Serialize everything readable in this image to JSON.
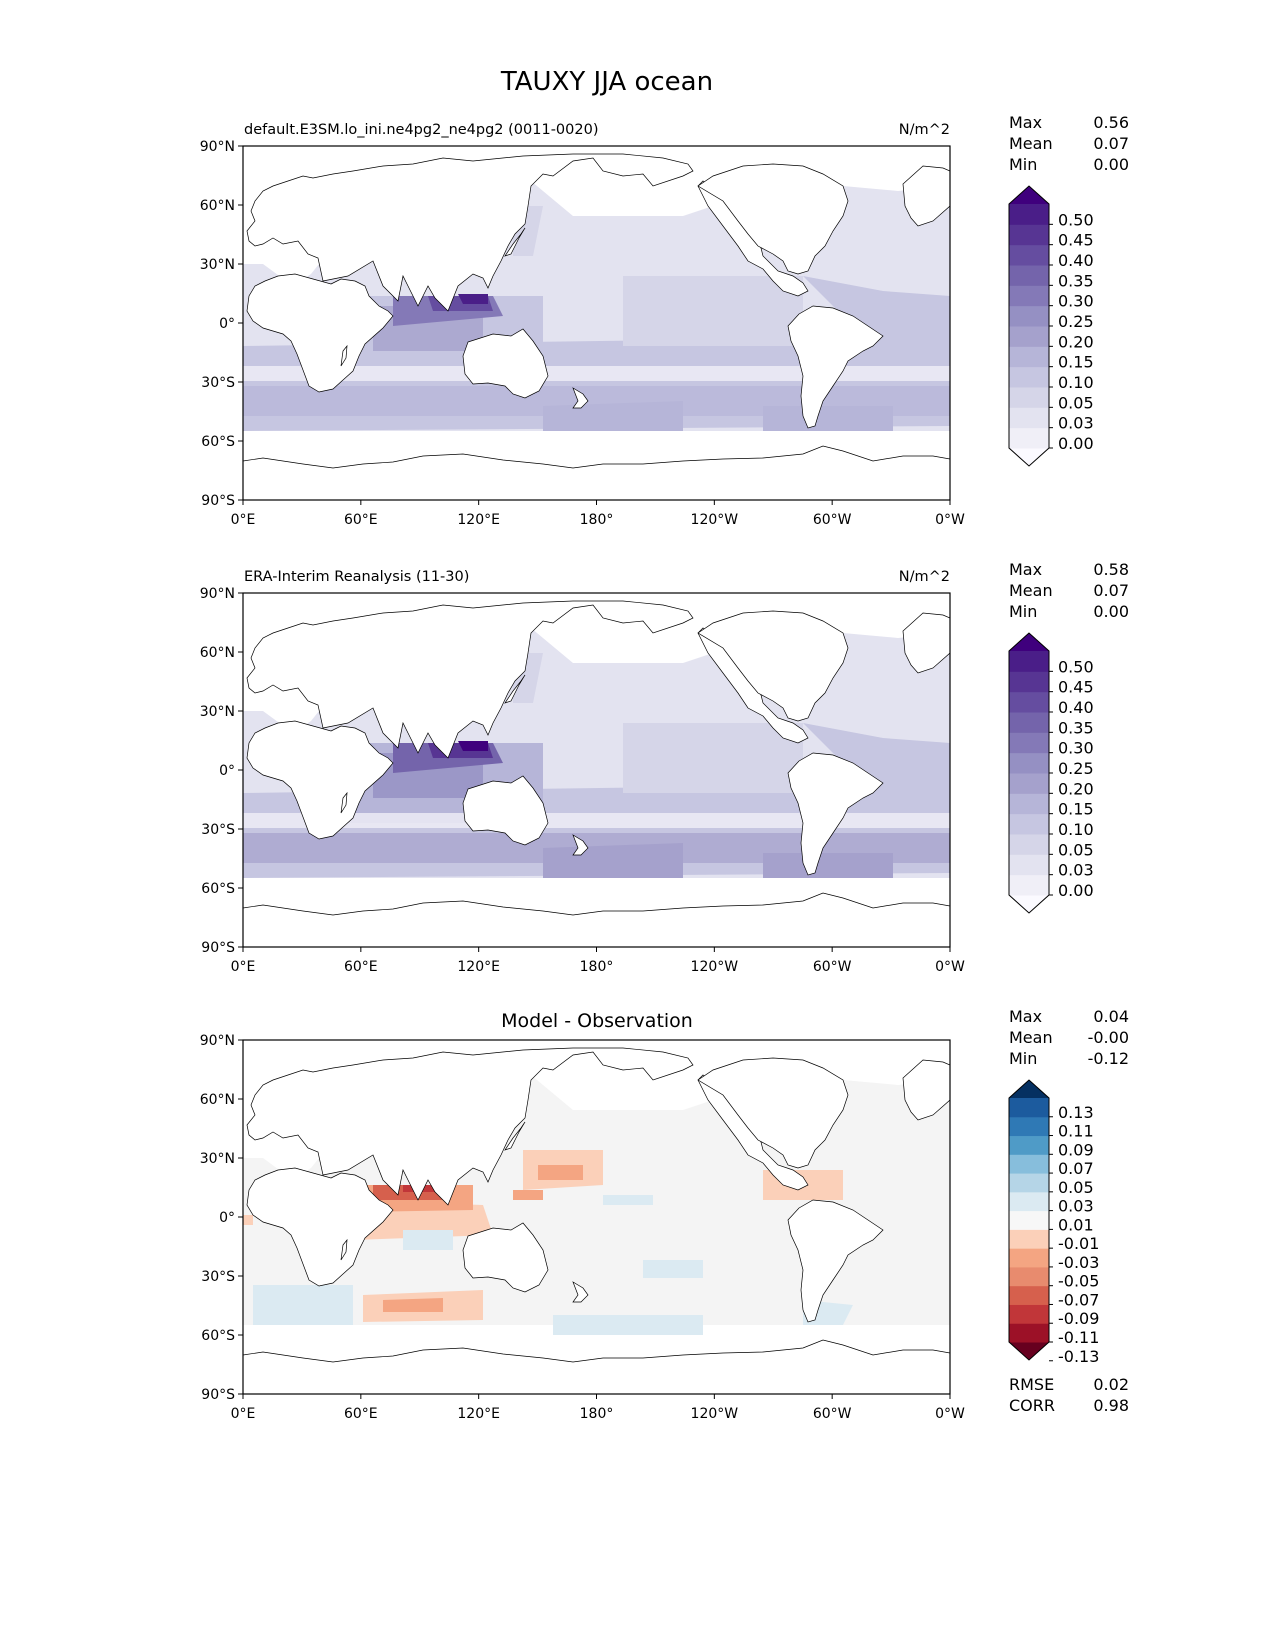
{
  "figure": {
    "title": "TAUXY JJA ocean"
  },
  "axes": {
    "lat_ticks": [
      "90°N",
      "60°N",
      "30°N",
      "0°",
      "30°S",
      "60°S",
      "90°S"
    ],
    "lon_ticks": [
      "0°E",
      "60°E",
      "120°E",
      "180°",
      "120°W",
      "60°W",
      "0°W"
    ]
  },
  "panels": [
    {
      "id": "model",
      "title": "default.E3SM.lo_ini.ne4pg2_ne4pg2 (0011-0020)",
      "units": "N/m^2",
      "stats": {
        "labels": [
          "Max",
          "Mean",
          "Min"
        ],
        "values": [
          "0.56",
          "0.07",
          "0.00"
        ]
      },
      "colorbar": {
        "labels": [
          "0.50",
          "0.45",
          "0.40",
          "0.35",
          "0.30",
          "0.25",
          "0.20",
          "0.15",
          "0.10",
          "0.05",
          "0.03",
          "0.00"
        ],
        "colors": [
          "#fbfaff",
          "#f0eff7",
          "#e3e3f0",
          "#d5d5e8",
          "#c6c6e1",
          "#b6b5d8",
          "#a5a1cc",
          "#9590c3",
          "#8479b7",
          "#7464ab",
          "#654da0",
          "#573593",
          "#4a1e88",
          "#3f007d"
        ]
      }
    },
    {
      "id": "obs",
      "title": "ERA-Interim Reanalysis (11-30)",
      "units": "N/m^2",
      "stats": {
        "labels": [
          "Max",
          "Mean",
          "Min"
        ],
        "values": [
          "0.58",
          "0.07",
          "0.00"
        ]
      },
      "colorbar": {
        "labels": [
          "0.50",
          "0.45",
          "0.40",
          "0.35",
          "0.30",
          "0.25",
          "0.20",
          "0.15",
          "0.10",
          "0.05",
          "0.03",
          "0.00"
        ],
        "colors": [
          "#fbfaff",
          "#f0eff7",
          "#e3e3f0",
          "#d5d5e8",
          "#c6c6e1",
          "#b6b5d8",
          "#a5a1cc",
          "#9590c3",
          "#8479b7",
          "#7464ab",
          "#654da0",
          "#573593",
          "#4a1e88",
          "#3f007d"
        ]
      }
    },
    {
      "id": "diff",
      "title": "Model - Observation",
      "units": "",
      "stats": {
        "labels": [
          "Max",
          "Mean",
          "Min"
        ],
        "values": [
          "0.04",
          "-0.00",
          "-0.12"
        ]
      },
      "metrics": {
        "labels": [
          "RMSE",
          "CORR"
        ],
        "values": [
          "0.02",
          "0.98"
        ]
      },
      "colorbar": {
        "labels": [
          "0.13",
          "0.11",
          "0.09",
          "0.07",
          "0.05",
          "0.03",
          "0.01",
          "-0.01",
          "-0.03",
          "-0.05",
          "-0.07",
          "-0.09",
          "-0.11",
          "-0.13"
        ],
        "colors": [
          "#67001f",
          "#9c1127",
          "#c13639",
          "#d6604d",
          "#e88b6e",
          "#f4a582",
          "#fbd0b9",
          "#f7f7f7",
          "#dbeaf2",
          "#b5d5e7",
          "#87bedc",
          "#4f9bc7",
          "#2f79b5",
          "#1c5b9e",
          "#053061"
        ]
      }
    }
  ]
}
